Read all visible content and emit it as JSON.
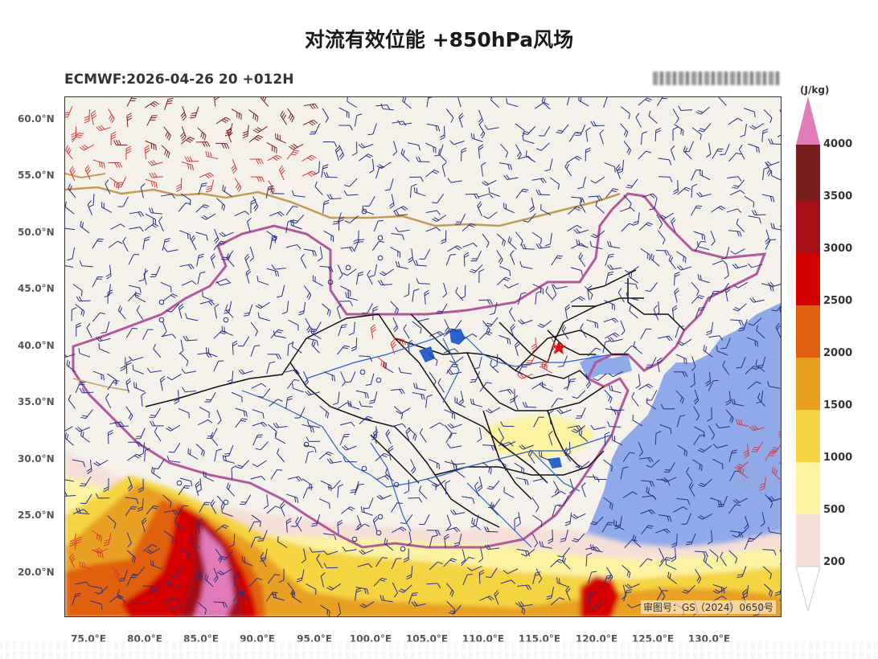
{
  "title": "对流有效位能 +850hPa风场",
  "subtitle": "ECMWF:2026-04-26 20 +012H",
  "approval_number": "审图号：GS（2024）0650号",
  "lat_labels": [
    "60.0°N",
    "55.0°N",
    "50.0°N",
    "45.0°N",
    "40.0°N",
    "35.0°N",
    "30.0°N",
    "25.0°N",
    "20.0°N"
  ],
  "lon_labels": [
    "75.0°E",
    "80.0°E",
    "85.0°E",
    "90.0°E",
    "95.0°E",
    "100.0°E",
    "105.0°E",
    "110.0°E",
    "115.0°E",
    "120.0°E",
    "125.0°E",
    "130.0°E"
  ],
  "colorbar": {
    "unit": "(J/kg)",
    "ticks": [
      "4000",
      "3500",
      "3000",
      "2500",
      "2000",
      "1500",
      "1000",
      "500",
      "200"
    ],
    "colors": [
      "#e07ab8",
      "#7a1f1f",
      "#a50f15",
      "#d40000",
      "#e06010",
      "#e8a020",
      "#f5d443",
      "#fbf3a2",
      "#f5dfd8",
      "#ffffff"
    ]
  },
  "colors": {
    "ocean": "#90a9e8",
    "land": "#f4f1ea",
    "china_border": "#b4589c",
    "province_border": "#111111",
    "river": "#2b63c9",
    "wind_barb": "#2a2f86",
    "wind_barb_strong": "#d83a3a",
    "wind_barb_very_strong": "#7a1f1f"
  }
}
